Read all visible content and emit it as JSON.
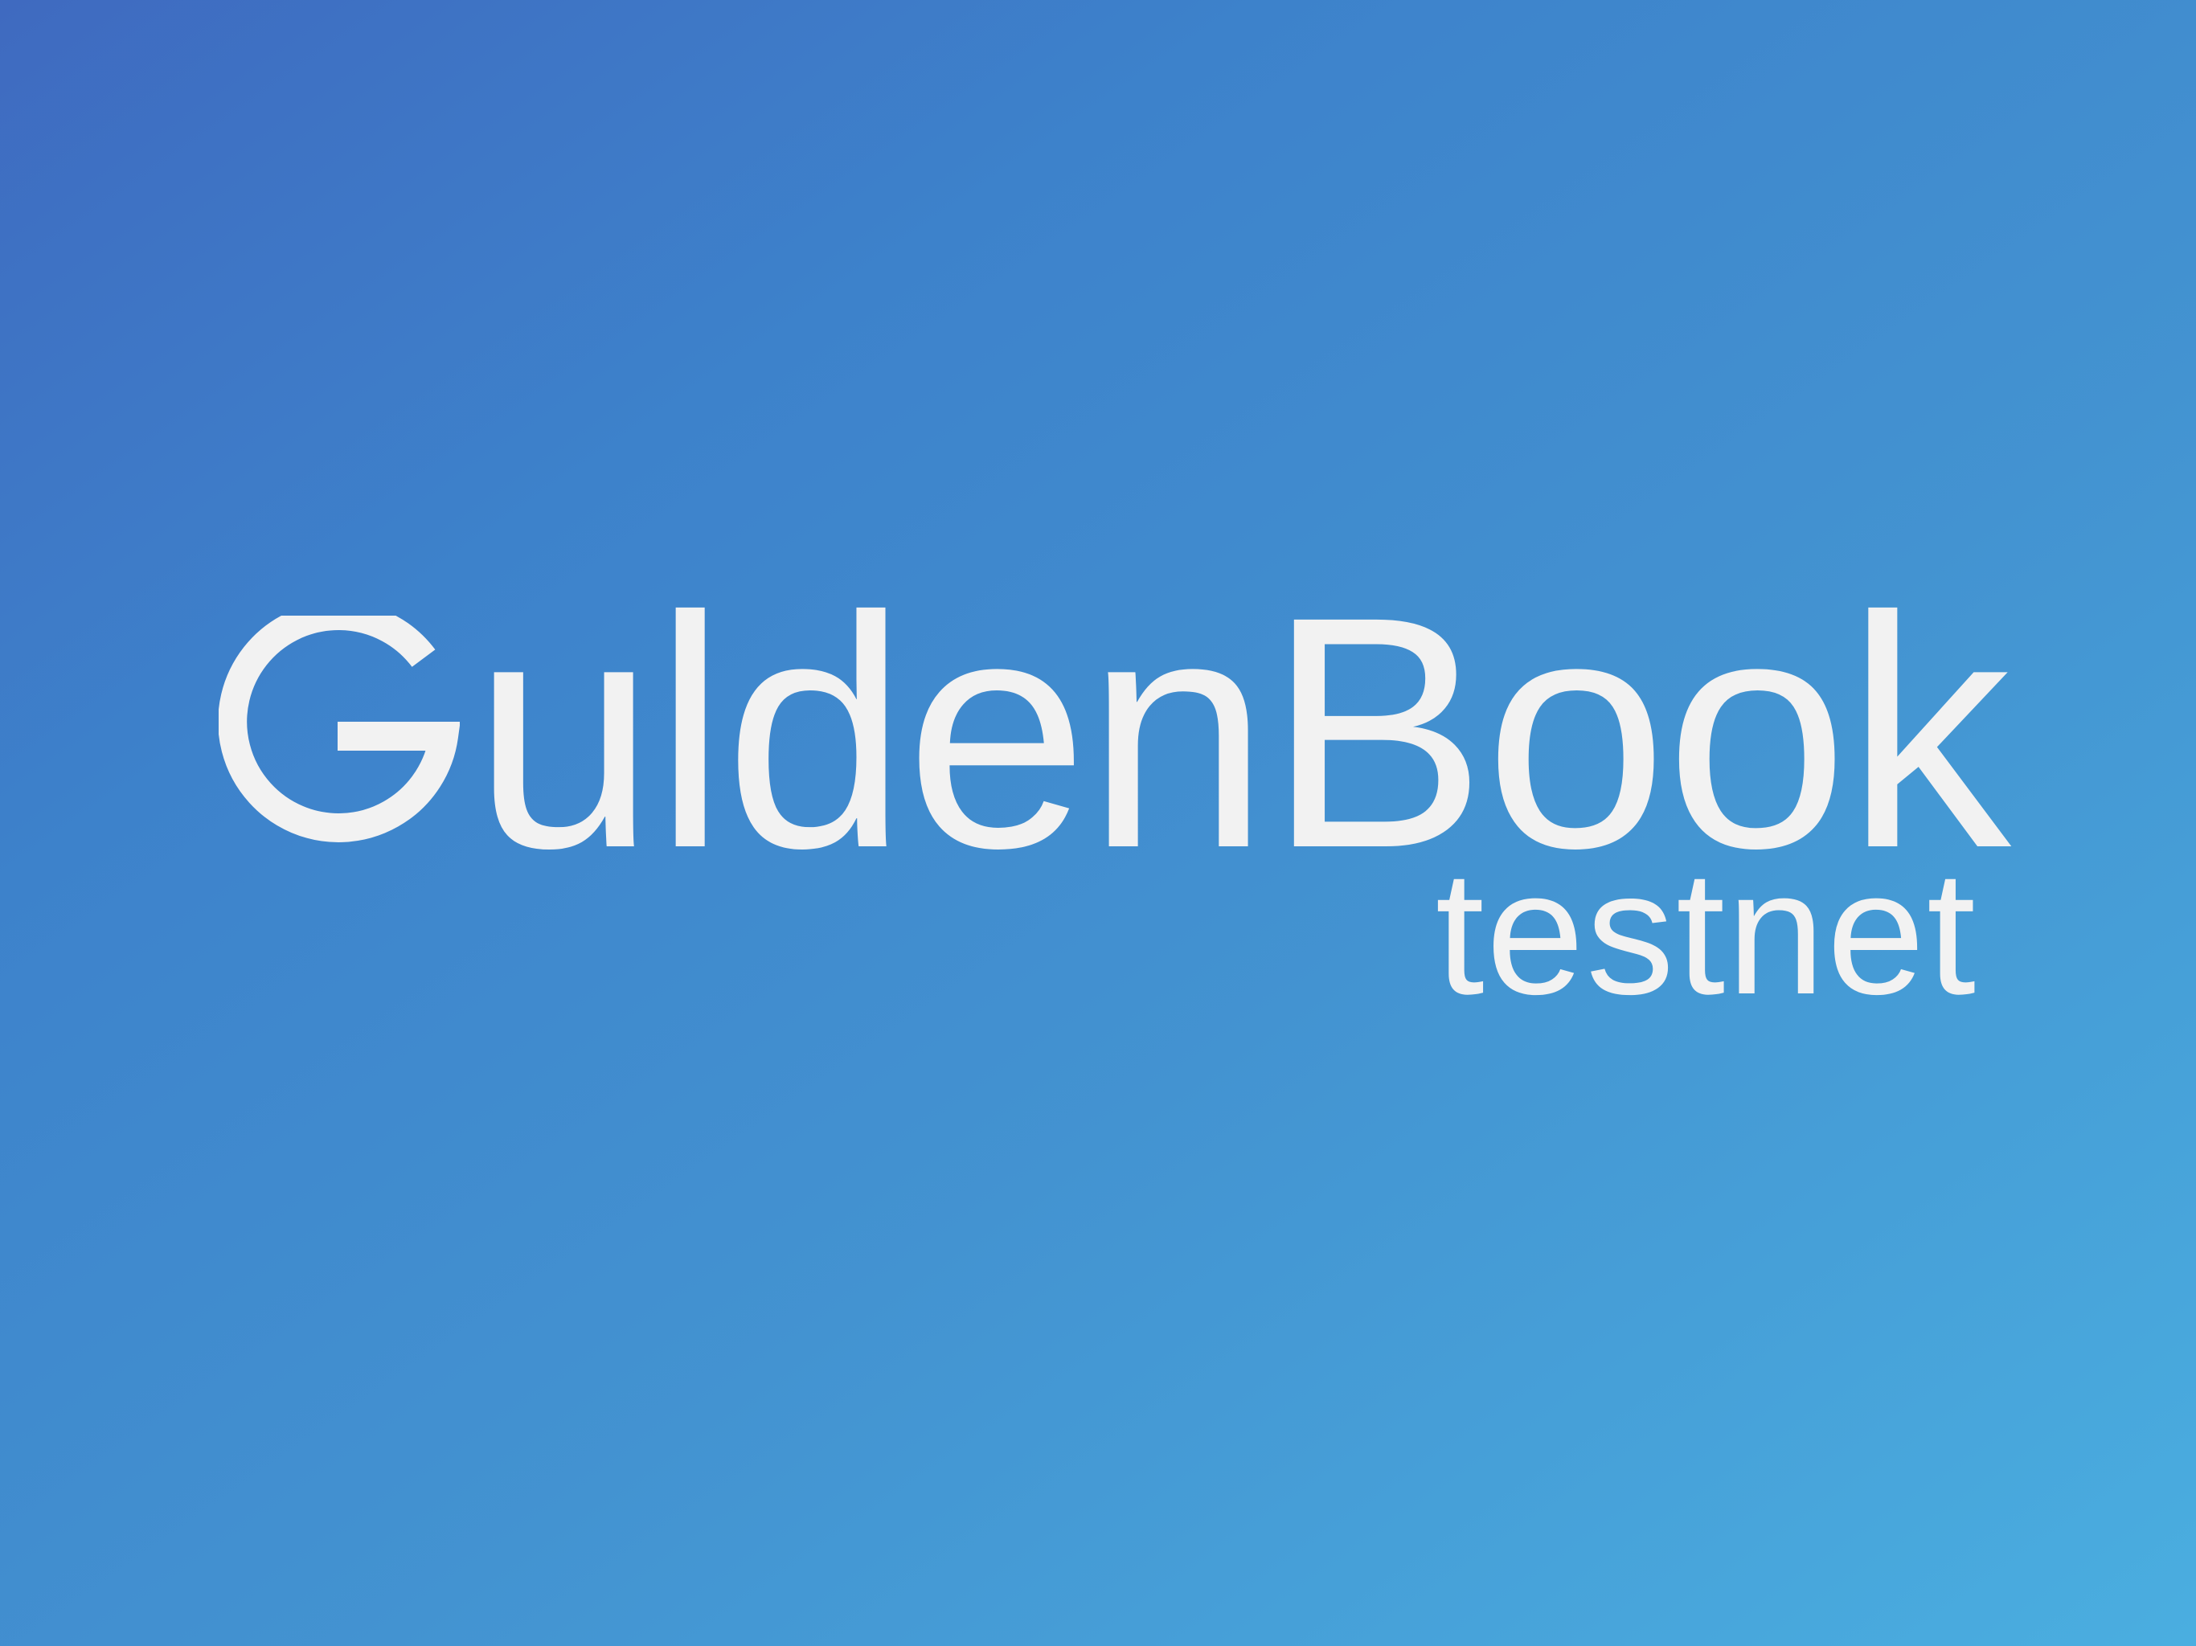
{
  "brand": {
    "wordmark": "uldenBook",
    "subtitle": "testnet",
    "logo_icon": "gulden-g-icon",
    "text_color": "#f2f2f2"
  },
  "background": {
    "gradient_start": "#3f6ac0",
    "gradient_end": "#4aaee0"
  }
}
